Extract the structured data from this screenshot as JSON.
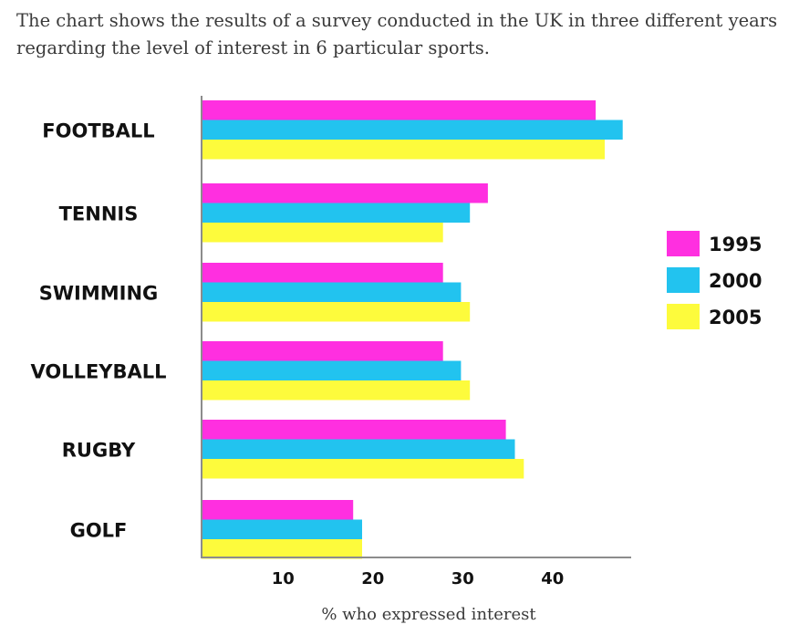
{
  "intro_text": "The chart shows the results of a survey conducted in the UK in three different years regarding the level of interest in 6 particular sports.",
  "chart_data": {
    "type": "bar",
    "orientation": "horizontal",
    "title": "",
    "xlabel": "% who expressed interest",
    "ylabel": "",
    "categories": [
      "FOOTBALL",
      "TENNIS",
      "SWIMMING",
      "VOLLEYBALL",
      "RUGBY",
      "GOLF"
    ],
    "x_ticks": [
      10,
      20,
      30,
      40
    ],
    "xlim": [
      0,
      50
    ],
    "grid": false,
    "legend_position": "right",
    "series": [
      {
        "name": "1995",
        "color": "#ff2fe0",
        "values": [
          44,
          32,
          27,
          27,
          34,
          17
        ]
      },
      {
        "name": "2000",
        "color": "#22c3ef",
        "values": [
          47,
          30,
          29,
          29,
          35,
          18
        ]
      },
      {
        "name": "2005",
        "color": "#fdfb3c",
        "values": [
          45,
          27,
          30,
          30,
          36,
          18
        ]
      }
    ]
  }
}
